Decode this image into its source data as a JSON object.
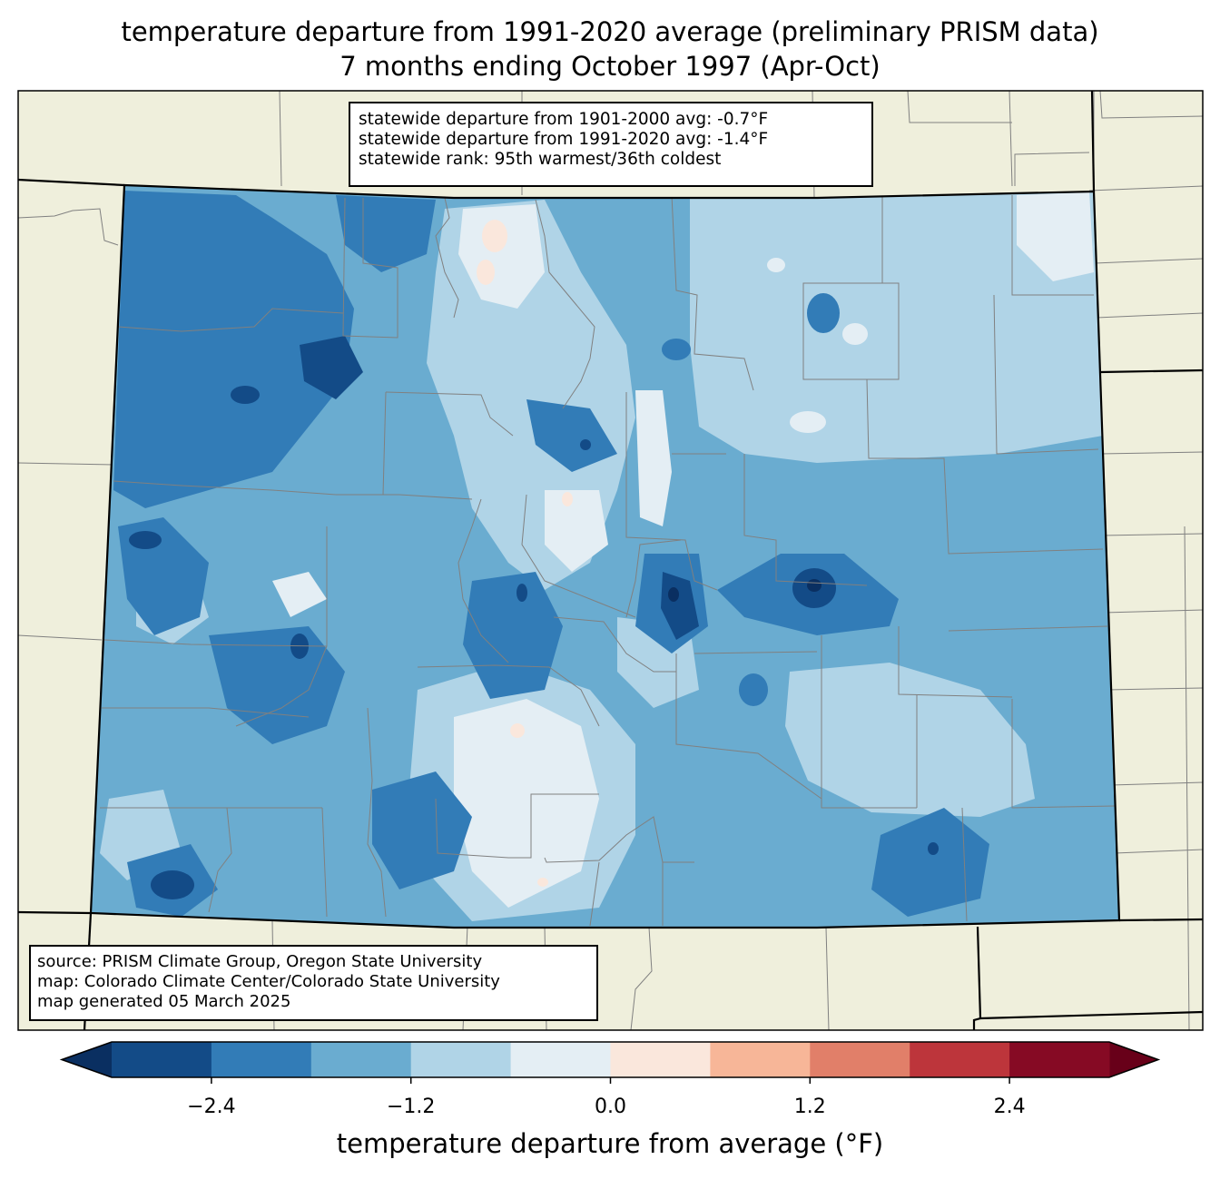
{
  "title": {
    "line1": "temperature departure from 1991-2020 average (preliminary PRISM data)",
    "line2": "7 months ending October 1997 (Apr-Oct)"
  },
  "stats": {
    "line1": "statewide departure from 1901-2000 avg: -0.7°F",
    "line2": "statewide departure from 1991-2020 avg: -1.4°F",
    "line3": "statewide rank: 95th warmest/36th coldest"
  },
  "source": {
    "line1": "source: PRISM Climate Group, Oregon State University",
    "line2": "map: Colorado Climate Center/Colorado State University",
    "line3": "map generated 05 March 2025"
  },
  "colorbar": {
    "label": "temperature departure from average (°F)",
    "ticks": [
      {
        "value": -2.4,
        "label": "−2.4"
      },
      {
        "value": -1.2,
        "label": "−1.2"
      },
      {
        "value": 0.0,
        "label": "0.0"
      },
      {
        "value": 1.2,
        "label": "1.2"
      },
      {
        "value": 2.4,
        "label": "2.4"
      }
    ],
    "range": [
      -3.0,
      3.0
    ],
    "bins": [
      {
        "from": -3.0,
        "to": -2.4,
        "color": "#134b87"
      },
      {
        "from": -2.4,
        "to": -1.8,
        "color": "#327cb7"
      },
      {
        "from": -1.8,
        "to": -1.2,
        "color": "#6aacd0"
      },
      {
        "from": -1.2,
        "to": -0.6,
        "color": "#b0d4e7"
      },
      {
        "from": -0.6,
        "to": 0.0,
        "color": "#e4eef4"
      },
      {
        "from": 0.0,
        "to": 0.6,
        "color": "#fae7dc"
      },
      {
        "from": 0.6,
        "to": 1.2,
        "color": "#f7b698"
      },
      {
        "from": 1.2,
        "to": 1.8,
        "color": "#e17f69"
      },
      {
        "from": 1.8,
        "to": 2.4,
        "color": "#bd353b"
      },
      {
        "from": 2.4,
        "to": 3.0,
        "color": "#860a24"
      }
    ],
    "under_color": "#0a2f61",
    "over_color": "#680019"
  },
  "colors": {
    "land": "#efefdc",
    "county_lines": "#808080",
    "state_lines": "#000000"
  },
  "chart_data": {
    "type": "heatmap",
    "title": "temperature departure from 1991-2020 average (preliminary PRISM data)",
    "subtitle": "7 months ending October 1997 (Apr-Oct)",
    "value_label": "temperature departure from average (°F)",
    "statewide_departure_1901_2000": -0.7,
    "statewide_departure_1991_2020": -1.4,
    "statewide_rank": "95th warmest/36th coldest",
    "dominant_range": [
      -1.8,
      -1.2
    ]
  }
}
